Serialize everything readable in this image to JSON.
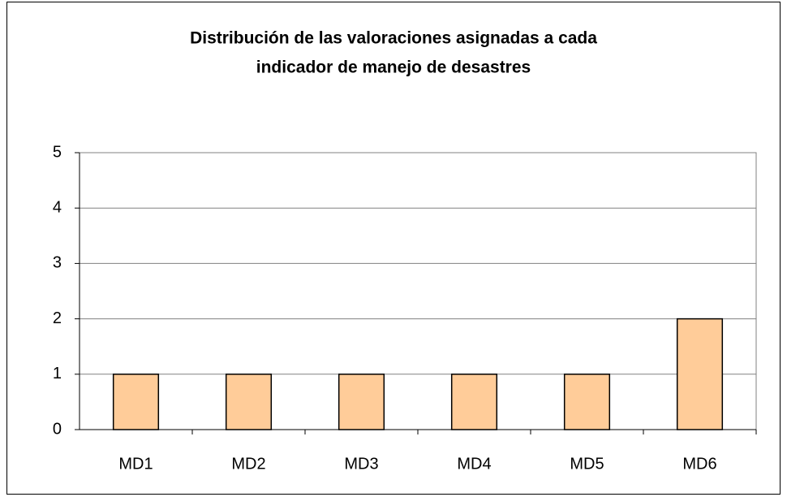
{
  "chart_data": {
    "type": "bar",
    "title": [
      "Distribución de las valoraciones asignadas a cada",
      "indicador de manejo de desastres"
    ],
    "categories": [
      "MD1",
      "MD2",
      "MD3",
      "MD4",
      "MD5",
      "MD6"
    ],
    "values": [
      1,
      1,
      1,
      1,
      1,
      2
    ],
    "color": "#ffcc99",
    "ylim": [
      0,
      5
    ],
    "yticks": [
      0,
      1,
      2,
      3,
      4,
      5
    ],
    "grid": true
  }
}
